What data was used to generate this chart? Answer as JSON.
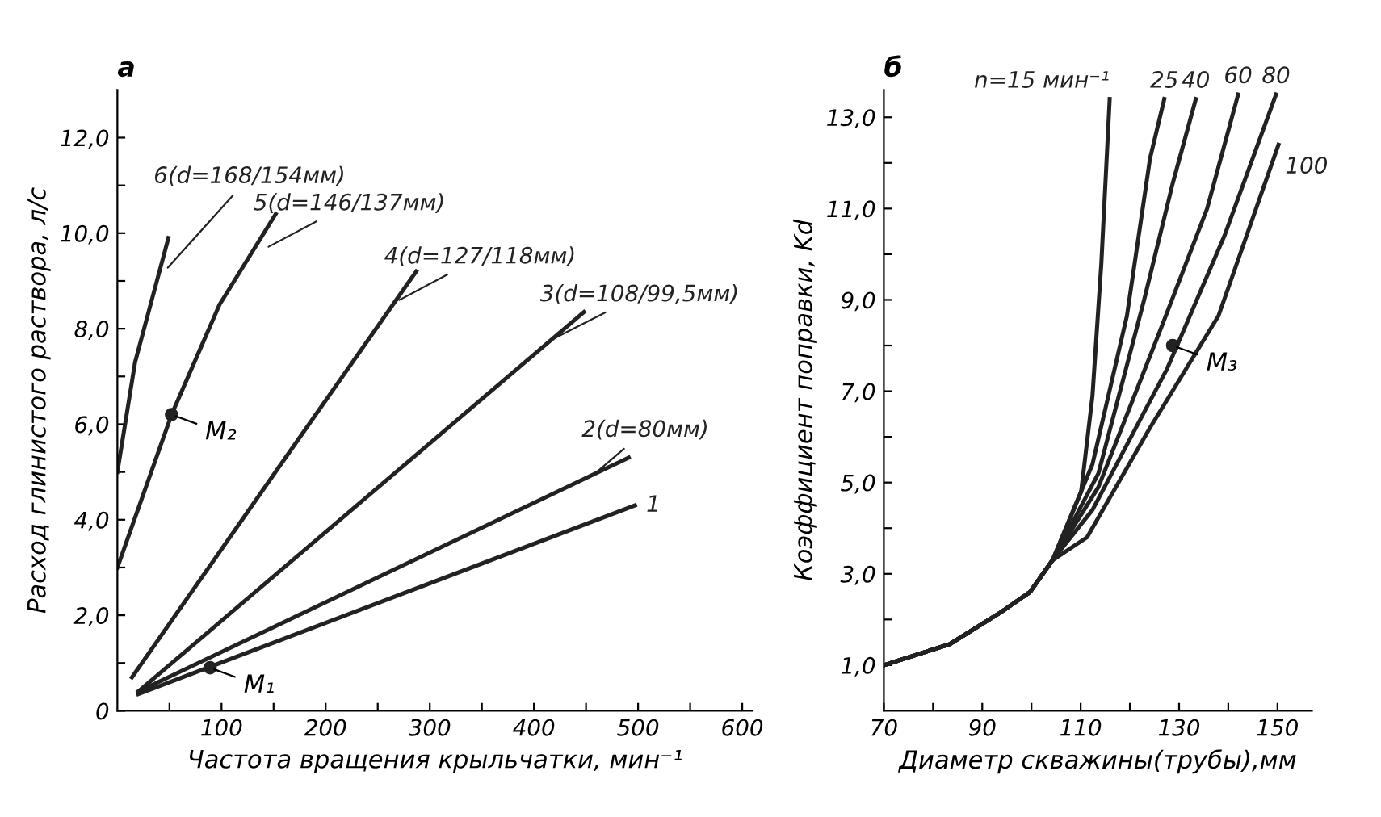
{
  "chart_data": [
    {
      "type": "line",
      "title": "а",
      "xlabel": "Частота вращения крыльчатки, мин⁻¹",
      "ylabel": "Расход глинистого раствора, л/с",
      "xlim": [
        0,
        610
      ],
      "ylim": [
        0,
        13
      ],
      "xticks": [
        {
          "value": 50,
          "label": null
        },
        100,
        {
          "value": 150,
          "label": null
        },
        200,
        {
          "value": 250,
          "label": null
        },
        300,
        {
          "value": 350,
          "label": null
        },
        400,
        {
          "value": 450,
          "label": null
        },
        500,
        {
          "value": 550,
          "label": null
        },
        600
      ],
      "yticks": [
        {
          "value": 0,
          "label": "0"
        },
        {
          "value": 1,
          "label": null
        },
        {
          "value": 2,
          "label": "2,0"
        },
        {
          "value": 3,
          "label": null
        },
        {
          "value": 4,
          "label": "4,0"
        },
        {
          "value": 5,
          "label": null
        },
        {
          "value": 6,
          "label": "6,0"
        },
        {
          "value": 7,
          "label": null
        },
        {
          "value": 8,
          "label": "8,0"
        },
        {
          "value": 9,
          "label": null
        },
        {
          "value": 10,
          "label": "10,0"
        },
        {
          "value": 11,
          "label": null
        },
        {
          "value": 12,
          "label": "12,0"
        }
      ],
      "grid": false,
      "legend": false,
      "marker": "none",
      "line_style": "solid",
      "series": [
        {
          "name": "1",
          "color": "#222222",
          "x": [
            20,
            497
          ],
          "values": [
            0.35,
            4.3
          ]
        },
        {
          "name": "2(d=80мм)",
          "color": "#222222",
          "x": [
            20,
            491
          ],
          "values": [
            0.4,
            5.3
          ]
        },
        {
          "name": "3(d=108/99,5мм)",
          "color": "#222222",
          "x": [
            20,
            448
          ],
          "values": [
            0.4,
            8.35
          ]
        },
        {
          "name": "4(d=127/118мм)",
          "color": "#222222",
          "x": [
            14,
            155,
            287
          ],
          "values": [
            0.7,
            5.1,
            9.2
          ]
        },
        {
          "name": "5(d=146/137мм)",
          "color": "#222222",
          "x": [
            0,
            52,
            98,
            152
          ],
          "values": [
            3.0,
            6.2,
            8.5,
            10.4
          ]
        },
        {
          "name": "6(d=168/154мм)",
          "color": "#222222",
          "x": [
            0,
            17,
            49
          ],
          "values": [
            5.0,
            7.3,
            9.9
          ]
        }
      ],
      "annotations": [
        {
          "text": "M₁",
          "x": 89,
          "y": 0.9
        },
        {
          "text": "M₂",
          "x": 52,
          "y": 6.2
        }
      ]
    },
    {
      "type": "line",
      "title": "б",
      "xlabel": "Диаметр скважины(трубы),мм",
      "ylabel": "Коэффициент поправки, Kd",
      "xlim": [
        70,
        157
      ],
      "ylim": [
        0,
        13.6
      ],
      "xticks": [
        70,
        {
          "value": 80,
          "label": null
        },
        90,
        {
          "value": 100,
          "label": null
        },
        110,
        {
          "value": 120,
          "label": null
        },
        130,
        {
          "value": 140,
          "label": null
        },
        150
      ],
      "yticks": [
        {
          "value": 1,
          "label": "1,0"
        },
        {
          "value": 2,
          "label": null
        },
        {
          "value": 3,
          "label": "3,0"
        },
        {
          "value": 4,
          "label": null
        },
        {
          "value": 5,
          "label": "5,0"
        },
        {
          "value": 6,
          "label": null
        },
        {
          "value": 7,
          "label": "7,0"
        },
        {
          "value": 8,
          "label": null
        },
        {
          "value": 9,
          "label": "9,0"
        },
        {
          "value": 10,
          "label": null
        },
        {
          "value": 11,
          "label": "11,0"
        },
        {
          "value": 12,
          "label": null
        },
        {
          "value": 13,
          "label": "13,0"
        }
      ],
      "grid": false,
      "legend": false,
      "marker": "none",
      "line_style": "solid",
      "series": [
        {
          "name": "n=15 мин⁻¹",
          "color": "#222222",
          "x": [
            70,
            83.4,
            93.8,
            99.7,
            104.3,
            110.1,
            112.4,
            114.2,
            115.9
          ],
          "values": [
            1.0,
            1.46,
            2.16,
            2.6,
            3.3,
            4.8,
            6.9,
            9.8,
            13.4
          ]
        },
        {
          "name": "25",
          "color": "#222222",
          "x": [
            70,
            83.4,
            93.8,
            99.7,
            104.3,
            112.4,
            119.4,
            124.1,
            127
          ],
          "values": [
            1.0,
            1.46,
            2.16,
            2.6,
            3.3,
            5.4,
            8.65,
            12.1,
            13.4
          ]
        },
        {
          "name": "40",
          "color": "#222222",
          "x": [
            70,
            83.4,
            93.8,
            99.7,
            104.3,
            113.6,
            122.9,
            128.7,
            133.4
          ],
          "values": [
            1.0,
            1.46,
            2.16,
            2.6,
            3.3,
            5.2,
            9.0,
            11.55,
            13.4
          ]
        },
        {
          "name": "60",
          "color": "#222222",
          "x": [
            70,
            83.4,
            93.8,
            99.7,
            104.3,
            113.6,
            126.4,
            135.7,
            142
          ],
          "values": [
            1.0,
            1.46,
            2.16,
            2.6,
            3.3,
            4.9,
            8.4,
            11.0,
            13.5
          ]
        },
        {
          "name": "80",
          "color": "#222222",
          "x": [
            70,
            83.4,
            93.8,
            99.7,
            104.3,
            112.4,
            127.6,
            139.2,
            149.7
          ],
          "values": [
            1.0,
            1.46,
            2.16,
            2.6,
            3.3,
            4.4,
            7.5,
            10.4,
            13.5
          ]
        },
        {
          "name": "100",
          "color": "#222222",
          "x": [
            70,
            83.4,
            93.8,
            99.7,
            104.3,
            111.3,
            124.1,
            138,
            150.2
          ],
          "values": [
            1.0,
            1.46,
            2.16,
            2.6,
            3.3,
            3.8,
            6.2,
            8.65,
            12.4
          ]
        }
      ],
      "annotations": [
        {
          "text": "M₃",
          "x": 128.7,
          "y": 8.0
        }
      ]
    }
  ]
}
